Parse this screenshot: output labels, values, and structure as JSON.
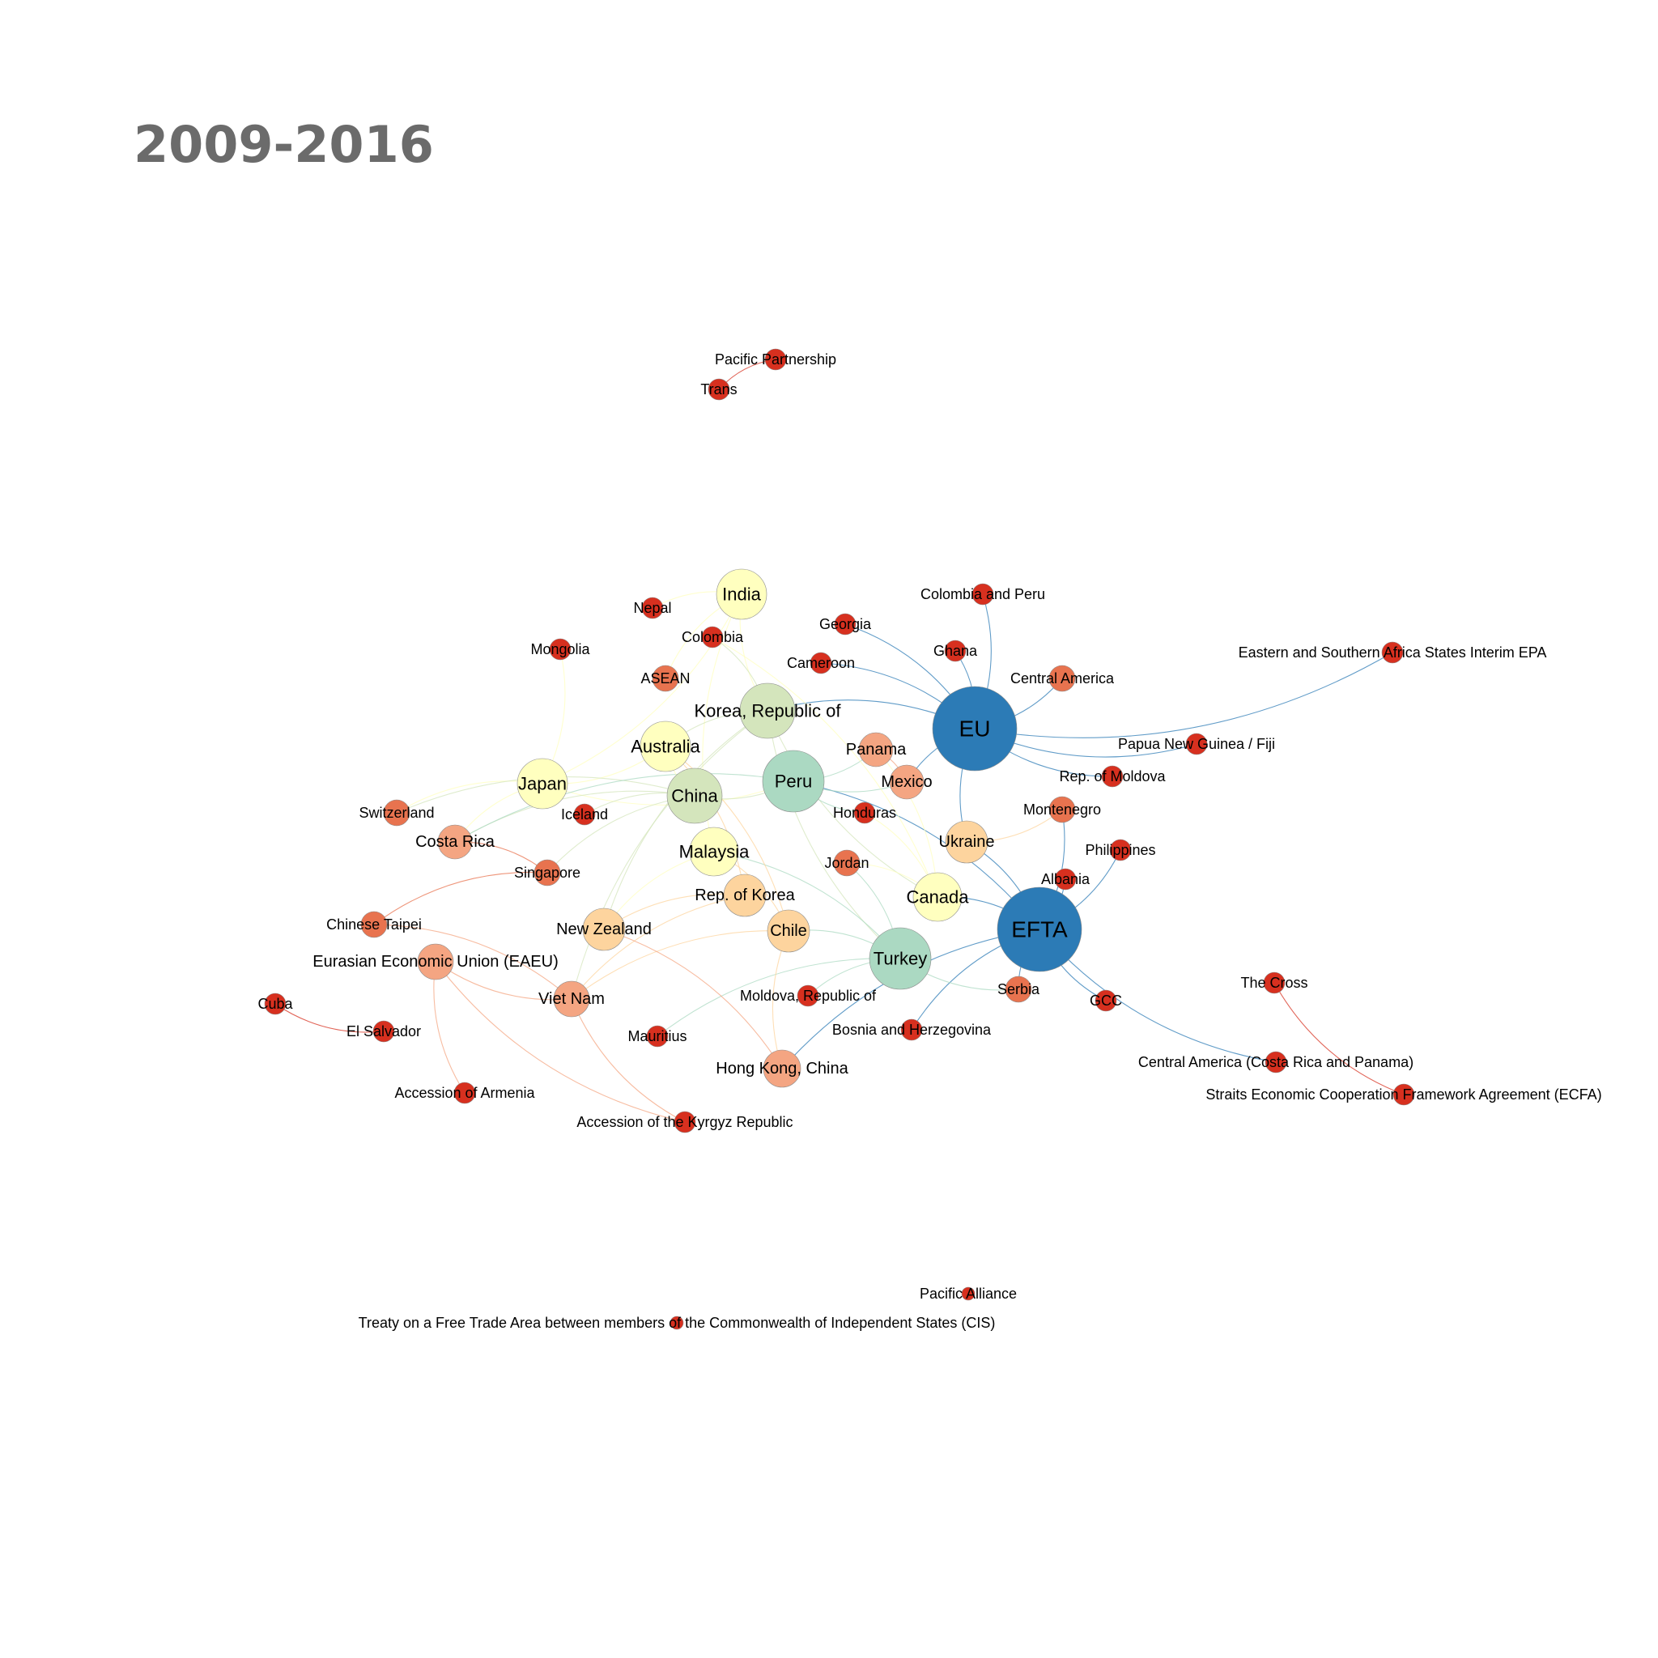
{
  "title": "2009-2016",
  "colors": {
    "title": "#6b6b6b",
    "blue": "#2c7bb6",
    "teal": "#abd9c2",
    "lightgreen": "#d4e5bc",
    "yellow": "#ffffbf",
    "peach": "#fdd49e",
    "orange": "#f4a582",
    "salmon": "#e8734f",
    "red": "#d7301f"
  },
  "nodes": [
    {
      "id": "eu",
      "label": "EU",
      "color": "blue"
    },
    {
      "id": "efta",
      "label": "EFTA",
      "color": "blue"
    },
    {
      "id": "peru",
      "label": "Peru",
      "color": "teal"
    },
    {
      "id": "turkey",
      "label": "Turkey",
      "color": "teal"
    },
    {
      "id": "korea_rep_of",
      "label": "Korea, Republic of",
      "color": "lightgreen"
    },
    {
      "id": "china",
      "label": "China",
      "color": "lightgreen"
    },
    {
      "id": "india",
      "label": "India",
      "color": "yellow"
    },
    {
      "id": "australia",
      "label": "Australia",
      "color": "yellow"
    },
    {
      "id": "japan",
      "label": "Japan",
      "color": "yellow"
    },
    {
      "id": "malaysia",
      "label": "Malaysia",
      "color": "yellow"
    },
    {
      "id": "canada",
      "label": "Canada",
      "color": "yellow"
    },
    {
      "id": "rep_of_korea",
      "label": "Rep. of Korea",
      "color": "peach"
    },
    {
      "id": "chile",
      "label": "Chile",
      "color": "peach"
    },
    {
      "id": "new_zealand",
      "label": "New Zealand",
      "color": "peach"
    },
    {
      "id": "ukraine",
      "label": "Ukraine",
      "color": "peach"
    },
    {
      "id": "hong_kong",
      "label": "Hong Kong, China",
      "color": "orange"
    },
    {
      "id": "viet_nam",
      "label": "Viet Nam",
      "color": "orange"
    },
    {
      "id": "eaeu",
      "label": "Eurasian Economic Union (EAEU)",
      "color": "orange"
    },
    {
      "id": "costa_rica",
      "label": "Costa Rica",
      "color": "orange"
    },
    {
      "id": "mexico",
      "label": "Mexico",
      "color": "orange"
    },
    {
      "id": "panama",
      "label": "Panama",
      "color": "orange"
    },
    {
      "id": "central_america",
      "label": "Central America",
      "color": "salmon"
    },
    {
      "id": "asean",
      "label": "ASEAN",
      "color": "salmon"
    },
    {
      "id": "switzerland",
      "label": "Switzerland",
      "color": "salmon"
    },
    {
      "id": "singapore",
      "label": "Singapore",
      "color": "salmon"
    },
    {
      "id": "chinese_taipei",
      "label": "Chinese Taipei",
      "color": "salmon"
    },
    {
      "id": "jordan",
      "label": "Jordan",
      "color": "salmon"
    },
    {
      "id": "montenegro",
      "label": "Montenegro",
      "color": "salmon"
    },
    {
      "id": "serbia",
      "label": "Serbia",
      "color": "salmon"
    },
    {
      "id": "pacific_partnership",
      "label": "Pacific Partnership",
      "color": "red"
    },
    {
      "id": "trans",
      "label": "Trans",
      "color": "red"
    },
    {
      "id": "nepal",
      "label": "Nepal",
      "color": "red"
    },
    {
      "id": "colombia",
      "label": "Colombia",
      "color": "red"
    },
    {
      "id": "mongolia",
      "label": "Mongolia",
      "color": "red"
    },
    {
      "id": "georgia",
      "label": "Georgia",
      "color": "red"
    },
    {
      "id": "cameroon",
      "label": "Cameroon",
      "color": "red"
    },
    {
      "id": "colombia_peru",
      "label": "Colombia and Peru",
      "color": "red"
    },
    {
      "id": "ghana",
      "label": "Ghana",
      "color": "red"
    },
    {
      "id": "esa_epa",
      "label": "Eastern and Southern Africa States Interim EPA",
      "color": "red"
    },
    {
      "id": "png_fiji",
      "label": "Papua New Guinea / Fiji",
      "color": "red"
    },
    {
      "id": "rep_of_moldova",
      "label": "Rep. of  Moldova",
      "color": "red"
    },
    {
      "id": "iceland",
      "label": "Iceland",
      "color": "red"
    },
    {
      "id": "honduras",
      "label": "Honduras",
      "color": "red"
    },
    {
      "id": "philippines",
      "label": "Philippines",
      "color": "red"
    },
    {
      "id": "albania",
      "label": "Albania",
      "color": "red"
    },
    {
      "id": "cuba",
      "label": "Cuba",
      "color": "red"
    },
    {
      "id": "el_salvador",
      "label": "El Salvador",
      "color": "red"
    },
    {
      "id": "moldova_rep_of",
      "label": "Moldova, Republic of",
      "color": "red"
    },
    {
      "id": "mauritius",
      "label": "Mauritius",
      "color": "red"
    },
    {
      "id": "bosnia",
      "label": "Bosnia and Herzegovina",
      "color": "red"
    },
    {
      "id": "gcc",
      "label": "GCC",
      "color": "red"
    },
    {
      "id": "the_cross",
      "label": "The Cross",
      "color": "red"
    },
    {
      "id": "ca_cr_panama",
      "label": "Central America (Costa Rica and Panama)",
      "color": "red"
    },
    {
      "id": "ecfa",
      "label": "Straits Economic Cooperation Framework Agreement (ECFA)",
      "color": "red"
    },
    {
      "id": "armenia",
      "label": "Accession of Armenia",
      "color": "red"
    },
    {
      "id": "kyrgyz",
      "label": "Accession of the Kyrgyz Republic",
      "color": "red"
    },
    {
      "id": "pacific_alliance",
      "label": "Pacific Alliance",
      "color": "red"
    },
    {
      "id": "cis_treaty",
      "label": "Treaty on a Free Trade Area between members of the Commonwealth of Independent States (CIS)",
      "color": "red"
    }
  ],
  "edges": [
    [
      "pacific_partnership",
      "trans"
    ],
    [
      "eu",
      "georgia"
    ],
    [
      "eu",
      "cameroon"
    ],
    [
      "eu",
      "colombia_peru"
    ],
    [
      "eu",
      "ghana"
    ],
    [
      "eu",
      "central_america"
    ],
    [
      "eu",
      "esa_epa"
    ],
    [
      "eu",
      "png_fiji"
    ],
    [
      "eu",
      "rep_of_moldova"
    ],
    [
      "eu",
      "ukraine"
    ],
    [
      "eu",
      "korea_rep_of"
    ],
    [
      "eu",
      "mexico"
    ],
    [
      "efta",
      "ukraine"
    ],
    [
      "efta",
      "montenegro"
    ],
    [
      "efta",
      "albania"
    ],
    [
      "efta",
      "serbia"
    ],
    [
      "efta",
      "gcc"
    ],
    [
      "efta",
      "ca_cr_panama"
    ],
    [
      "efta",
      "bosnia"
    ],
    [
      "efta",
      "hong_kong"
    ],
    [
      "efta",
      "peru"
    ],
    [
      "efta",
      "canada"
    ],
    [
      "efta",
      "philippines"
    ],
    [
      "india",
      "nepal"
    ],
    [
      "india",
      "asean"
    ],
    [
      "india",
      "korea_rep_of"
    ],
    [
      "india",
      "malaysia"
    ],
    [
      "japan",
      "mongolia"
    ],
    [
      "japan",
      "switzerland"
    ],
    [
      "japan",
      "peru"
    ],
    [
      "japan",
      "australia"
    ],
    [
      "japan",
      "india"
    ],
    [
      "japan",
      "costa_rica"
    ],
    [
      "china",
      "iceland"
    ],
    [
      "china",
      "switzerland"
    ],
    [
      "china",
      "costa_rica"
    ],
    [
      "china",
      "peru"
    ],
    [
      "china",
      "singapore"
    ],
    [
      "korea_rep_of",
      "colombia"
    ],
    [
      "korea_rep_of",
      "australia"
    ],
    [
      "korea_rep_of",
      "canada"
    ],
    [
      "korea_rep_of",
      "new_zealand"
    ],
    [
      "korea_rep_of",
      "turkey"
    ],
    [
      "korea_rep_of",
      "viet_nam"
    ],
    [
      "peru",
      "panama"
    ],
    [
      "peru",
      "costa_rica"
    ],
    [
      "peru",
      "honduras"
    ],
    [
      "peru",
      "mexico"
    ],
    [
      "canada",
      "jordan"
    ],
    [
      "canada",
      "honduras"
    ],
    [
      "canada",
      "panama"
    ],
    [
      "canada",
      "colombia"
    ],
    [
      "turkey",
      "jordan"
    ],
    [
      "turkey",
      "malaysia"
    ],
    [
      "turkey",
      "mauritius"
    ],
    [
      "turkey",
      "moldova_rep_of"
    ],
    [
      "turkey",
      "chile"
    ],
    [
      "turkey",
      "serbia"
    ],
    [
      "chile",
      "hong_kong"
    ],
    [
      "chile",
      "viet_nam"
    ],
    [
      "chile",
      "malaysia"
    ],
    [
      "chile",
      "australia"
    ],
    [
      "rep_of_korea",
      "new_zealand"
    ],
    [
      "rep_of_korea",
      "viet_nam"
    ],
    [
      "rep_of_korea",
      "australia"
    ],
    [
      "eaeu",
      "viet_nam"
    ],
    [
      "eaeu",
      "armenia"
    ],
    [
      "eaeu",
      "kyrgyz"
    ],
    [
      "viet_nam",
      "kyrgyz"
    ],
    [
      "viet_nam",
      "chinese_taipei"
    ],
    [
      "singapore",
      "chinese_taipei"
    ],
    [
      "singapore",
      "costa_rica"
    ],
    [
      "cuba",
      "el_salvador"
    ],
    [
      "the_cross",
      "ecfa"
    ],
    [
      "hong_kong",
      "new_zealand"
    ],
    [
      "malaysia",
      "new_zealand"
    ],
    [
      "ukraine",
      "montenegro"
    ],
    [
      "mexico",
      "panama"
    ],
    [
      "australia",
      "china"
    ]
  ]
}
